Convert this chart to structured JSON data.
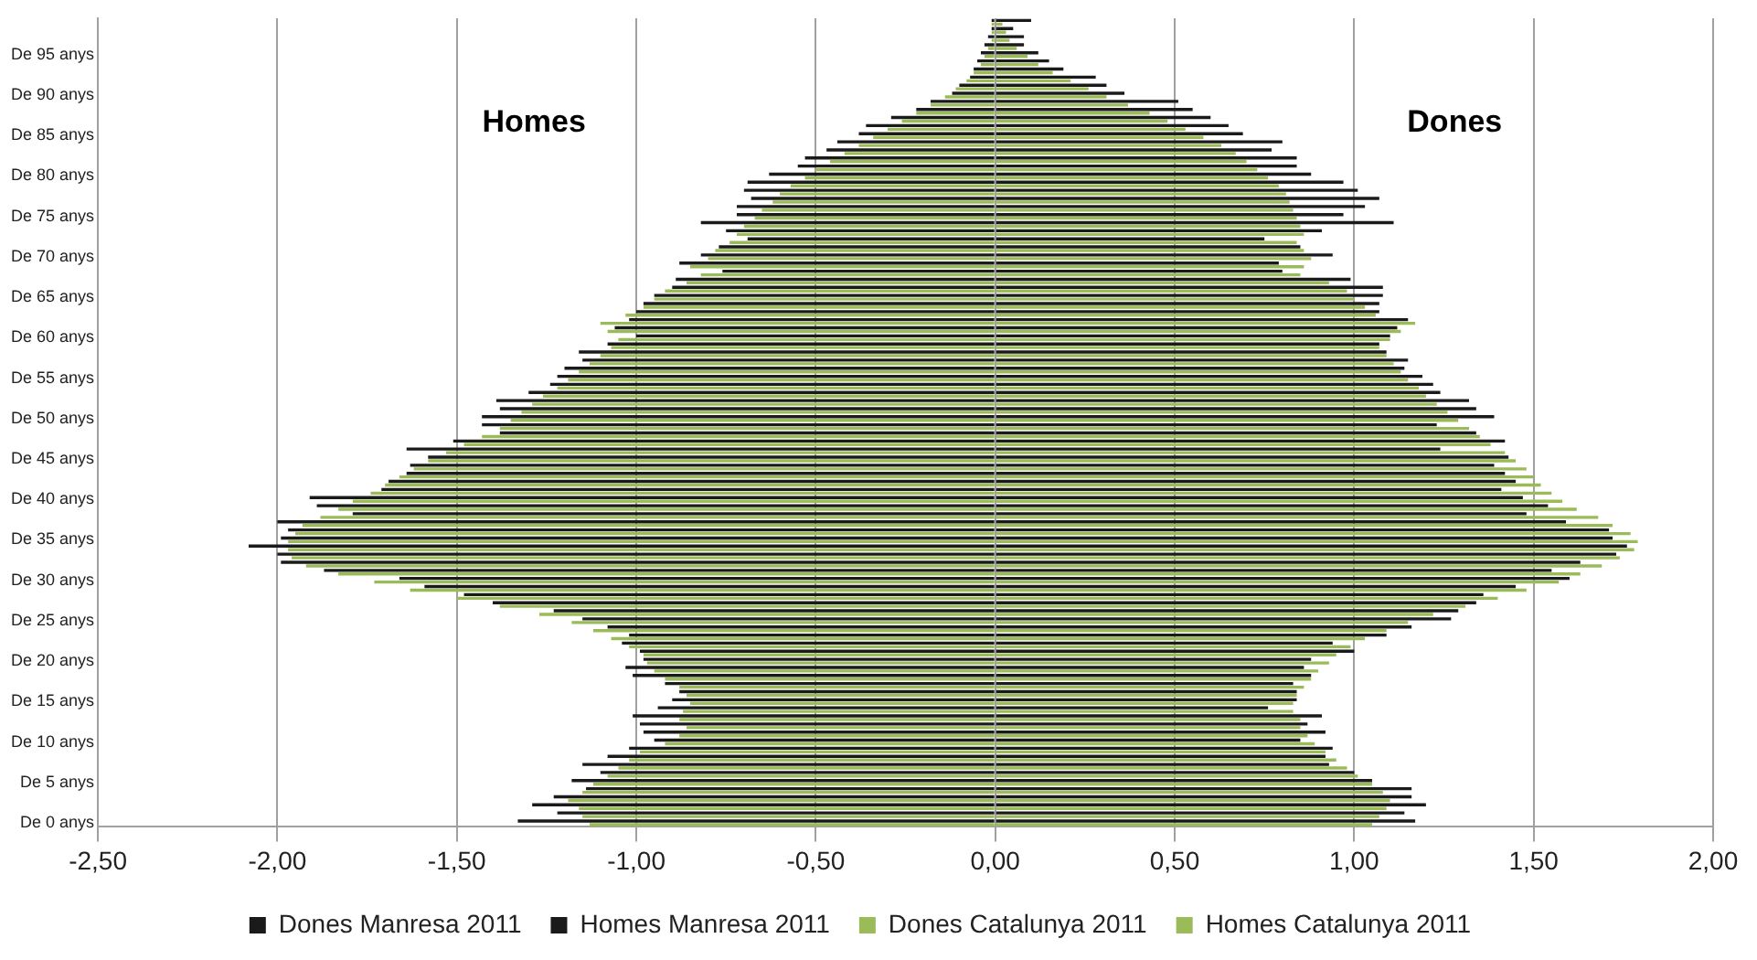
{
  "chart_data": {
    "type": "bar",
    "orientation": "horizontal",
    "annotations": [
      "Homes",
      "Dones"
    ],
    "categories": [
      null,
      null,
      null,
      null,
      "De 95 anys",
      null,
      null,
      null,
      null,
      "De 90 anys",
      null,
      null,
      null,
      null,
      "De 85 anys",
      null,
      null,
      null,
      null,
      "De 80 anys",
      null,
      null,
      null,
      null,
      "De 75 anys",
      null,
      null,
      null,
      null,
      "De 70 anys",
      null,
      null,
      null,
      null,
      "De 65 anys",
      null,
      null,
      null,
      null,
      "De 60 anys",
      null,
      null,
      null,
      null,
      "De 55 anys",
      null,
      null,
      null,
      null,
      "De 50 anys",
      null,
      null,
      null,
      null,
      "De 45 anys",
      null,
      null,
      null,
      null,
      "De 40 anys",
      null,
      null,
      null,
      null,
      "De 35 anys",
      null,
      null,
      null,
      null,
      "De 30 anys",
      null,
      null,
      null,
      null,
      "De 25 anys",
      null,
      null,
      null,
      null,
      "De 20 anys",
      null,
      null,
      null,
      null,
      "De 15 anys",
      null,
      null,
      null,
      null,
      "De 10 anys",
      null,
      null,
      null,
      null,
      "De 5 anys",
      null,
      null,
      null,
      null,
      "De 0 anys"
    ],
    "series": [
      {
        "name": "Dones Manresa 2011",
        "color": "#1a1a1a",
        "values": [
          0.1,
          0.05,
          0.08,
          0.08,
          0.12,
          0.15,
          0.19,
          0.28,
          0.31,
          0.36,
          0.51,
          0.55,
          0.6,
          0.65,
          0.69,
          0.8,
          0.77,
          0.84,
          0.84,
          0.88,
          0.97,
          1.01,
          1.07,
          1.03,
          0.97,
          1.11,
          0.91,
          0.75,
          0.85,
          0.94,
          0.79,
          0.8,
          0.99,
          1.08,
          1.08,
          1.07,
          1.07,
          1.15,
          1.12,
          1.1,
          1.07,
          1.09,
          1.15,
          1.14,
          1.19,
          1.22,
          1.24,
          1.32,
          1.34,
          1.39,
          1.23,
          1.34,
          1.42,
          1.24,
          1.43,
          1.39,
          1.42,
          1.45,
          1.41,
          1.47,
          1.54,
          1.48,
          1.59,
          1.71,
          1.72,
          1.76,
          1.73,
          1.63,
          1.55,
          1.6,
          1.45,
          1.36,
          1.34,
          1.29,
          1.27,
          1.16,
          1.09,
          0.94,
          1.0,
          0.88,
          0.86,
          0.88,
          0.83,
          0.84,
          0.84,
          0.76,
          0.91,
          0.87,
          0.92,
          0.85,
          0.94,
          0.92,
          0.93,
          1.0,
          1.05,
          1.16,
          1.16,
          1.2,
          1.14,
          1.17
        ]
      },
      {
        "name": "Homes Manresa 2011",
        "color": "#1a1a1a",
        "values": [
          -0.01,
          -0.01,
          -0.02,
          -0.03,
          -0.04,
          -0.05,
          -0.06,
          -0.07,
          -0.1,
          -0.12,
          -0.18,
          -0.22,
          -0.29,
          -0.36,
          -0.38,
          -0.44,
          -0.47,
          -0.53,
          -0.55,
          -0.63,
          -0.69,
          -0.7,
          -0.68,
          -0.72,
          -0.72,
          -0.82,
          -0.75,
          -0.69,
          -0.77,
          -0.82,
          -0.88,
          -0.76,
          -0.89,
          -0.9,
          -0.95,
          -0.98,
          -1.0,
          -1.02,
          -1.06,
          -1.0,
          -1.08,
          -1.16,
          -1.15,
          -1.2,
          -1.22,
          -1.24,
          -1.3,
          -1.39,
          -1.38,
          -1.43,
          -1.43,
          -1.38,
          -1.51,
          -1.64,
          -1.58,
          -1.63,
          -1.64,
          -1.69,
          -1.71,
          -1.91,
          -1.89,
          -1.79,
          -2.0,
          -1.97,
          -1.99,
          -2.08,
          -2.0,
          -1.99,
          -1.87,
          -1.66,
          -1.59,
          -1.48,
          -1.4,
          -1.23,
          -1.15,
          -1.08,
          -1.02,
          -1.04,
          -0.99,
          -0.98,
          -1.03,
          -1.01,
          -0.92,
          -0.88,
          -0.9,
          -0.94,
          -1.01,
          -0.99,
          -0.98,
          -0.95,
          -1.02,
          -1.08,
          -1.15,
          -1.1,
          -1.18,
          -1.14,
          -1.23,
          -1.29,
          -1.22,
          -1.33
        ]
      },
      {
        "name": "Dones Catalunya 2011",
        "color": "#9bbb59",
        "values": [
          0.02,
          0.03,
          0.04,
          0.06,
          0.09,
          0.12,
          0.16,
          0.21,
          0.26,
          0.31,
          0.37,
          0.43,
          0.48,
          0.53,
          0.58,
          0.63,
          0.67,
          0.7,
          0.73,
          0.76,
          0.79,
          0.81,
          0.82,
          0.83,
          0.84,
          0.85,
          0.86,
          0.84,
          0.86,
          0.88,
          0.86,
          0.85,
          0.93,
          0.98,
          1.0,
          1.03,
          1.06,
          1.17,
          1.13,
          1.1,
          1.07,
          1.09,
          1.11,
          1.13,
          1.15,
          1.18,
          1.2,
          1.23,
          1.26,
          1.29,
          1.32,
          1.35,
          1.38,
          1.42,
          1.45,
          1.48,
          1.5,
          1.52,
          1.55,
          1.58,
          1.62,
          1.68,
          1.72,
          1.77,
          1.79,
          1.78,
          1.74,
          1.69,
          1.63,
          1.57,
          1.48,
          1.4,
          1.31,
          1.22,
          1.15,
          1.09,
          1.03,
          0.99,
          0.95,
          0.93,
          0.9,
          0.88,
          0.86,
          0.84,
          0.83,
          0.83,
          0.85,
          0.85,
          0.87,
          0.89,
          0.92,
          0.95,
          0.98,
          1.01,
          1.05,
          1.08,
          1.1,
          1.09,
          1.07,
          1.05
        ]
      },
      {
        "name": "Homes Catalunya 2011",
        "color": "#9bbb59",
        "values": [
          -0.01,
          -0.01,
          -0.01,
          -0.02,
          -0.03,
          -0.04,
          -0.06,
          -0.08,
          -0.11,
          -0.14,
          -0.18,
          -0.22,
          -0.26,
          -0.3,
          -0.34,
          -0.38,
          -0.42,
          -0.46,
          -0.5,
          -0.53,
          -0.57,
          -0.6,
          -0.62,
          -0.65,
          -0.67,
          -0.7,
          -0.72,
          -0.74,
          -0.78,
          -0.8,
          -0.85,
          -0.82,
          -0.86,
          -0.92,
          -0.95,
          -0.98,
          -1.03,
          -1.1,
          -1.08,
          -1.05,
          -1.07,
          -1.1,
          -1.13,
          -1.16,
          -1.19,
          -1.22,
          -1.26,
          -1.29,
          -1.32,
          -1.35,
          -1.38,
          -1.43,
          -1.48,
          -1.53,
          -1.58,
          -1.62,
          -1.66,
          -1.7,
          -1.74,
          -1.79,
          -1.83,
          -1.88,
          -1.93,
          -1.95,
          -1.97,
          -1.97,
          -1.96,
          -1.92,
          -1.83,
          -1.73,
          -1.63,
          -1.5,
          -1.38,
          -1.27,
          -1.18,
          -1.12,
          -1.07,
          -1.02,
          -0.98,
          -0.97,
          -0.95,
          -0.92,
          -0.88,
          -0.86,
          -0.85,
          -0.87,
          -0.88,
          -0.86,
          -0.88,
          -0.92,
          -0.99,
          -1.02,
          -1.05,
          -1.08,
          -1.12,
          -1.15,
          -1.19,
          -1.16,
          -1.15,
          -1.13
        ]
      }
    ],
    "xlim": [
      -2.5,
      2.0
    ],
    "xticks": [
      {
        "value": -2.5,
        "label": "-2,50"
      },
      {
        "value": -2.0,
        "label": "-2,00"
      },
      {
        "value": -1.5,
        "label": "-1,50"
      },
      {
        "value": -1.0,
        "label": "-1,00"
      },
      {
        "value": -0.5,
        "label": "-0,50"
      },
      {
        "value": 0,
        "label": "0,00"
      },
      {
        "value": 0.5,
        "label": "0,50"
      },
      {
        "value": 1.0,
        "label": "1,00"
      },
      {
        "value": 1.5,
        "label": "1,50"
      },
      {
        "value": 2.0,
        "label": "2,00"
      }
    ],
    "grid": "x",
    "legend": "bottom"
  }
}
